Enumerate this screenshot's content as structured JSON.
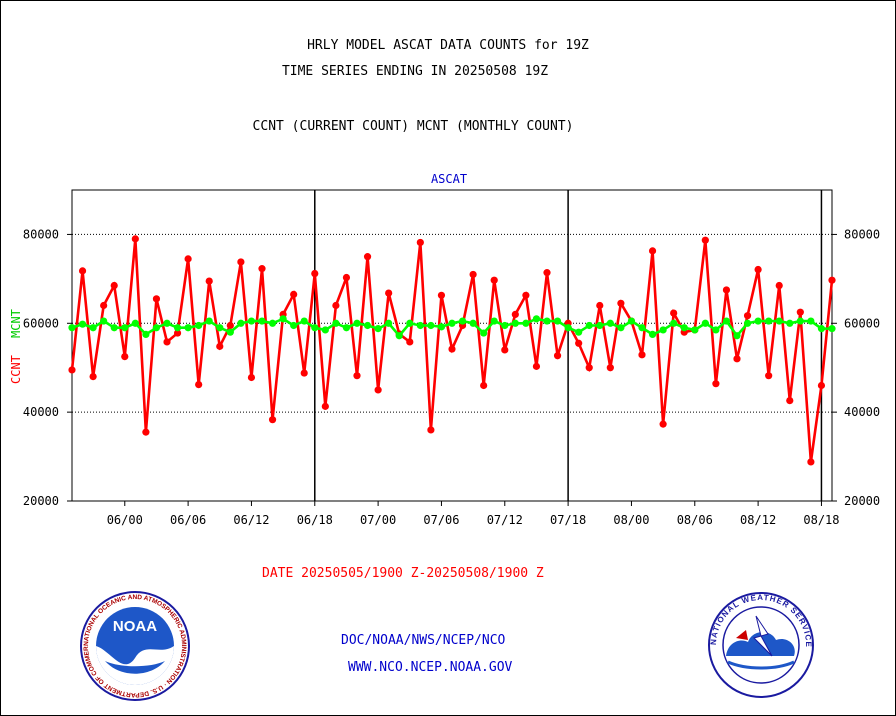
{
  "header": {
    "title_line1": "HRLY MODEL ASCAT DATA COUNTS for 19Z",
    "title_line2": "TIME SERIES ENDING IN 20250508 19Z",
    "subtitle": "CCNT (CURRENT COUNT) MCNT (MONTHLY COUNT)"
  },
  "footer": {
    "date_range": "DATE 20250505/1900 Z-20250508/1900 Z",
    "org_path": "DOC/NOAA/NWS/NCEP/NCO",
    "website": "WWW.NCO.NCEP.NOAA.GOV"
  },
  "logos": {
    "left_text": "NOAA",
    "left_ring": "NATIONAL OCEANIC AND ATMOSPHERIC ADMINISTRATION · U.S. DEPARTMENT OF COMMERCE",
    "right_ring": "NATIONAL WEATHER SERVICE"
  },
  "colors": {
    "ccnt": "#ff0000",
    "mcnt": "#00ff00",
    "panel": "#0000cc"
  },
  "chart_data": {
    "type": "line",
    "title": "ASCAT",
    "ylabel_ccnt": "CCNT",
    "ylabel_mcnt": "MCNT",
    "ylim": [
      20000,
      90000
    ],
    "yticks": [
      20000,
      40000,
      60000,
      80000
    ],
    "ytick_labels": [
      "20000",
      "40000",
      "60000",
      "80000"
    ],
    "x_tick_labels": [
      "06/00",
      "06/06",
      "06/12",
      "06/18",
      "07/00",
      "07/06",
      "07/12",
      "07/18",
      "08/00",
      "08/06",
      "08/12",
      "08/18"
    ],
    "x_tick_hours_from_start": [
      5,
      11,
      17,
      23,
      29,
      35,
      41,
      47,
      53,
      59,
      65,
      71
    ],
    "x_hours_total": 72,
    "day_boundaries_hours": [
      23,
      47,
      71
    ],
    "grid": "horizontal dotted at 40000, 60000, 80000",
    "series": [
      {
        "name": "CCNT",
        "values": [
          49500,
          71800,
          48000,
          64000,
          68500,
          52500,
          79000,
          35500,
          65500,
          55800,
          57800,
          74500,
          46200,
          69500,
          54800,
          59500,
          73800,
          47800,
          72300,
          38300,
          62000,
          66500,
          48800,
          71200,
          41300,
          64000,
          70300,
          48200,
          75000,
          45000,
          66800,
          57600,
          55800,
          78200,
          36000,
          66300,
          54200,
          59500,
          71000,
          46000,
          69700,
          54000,
          62000,
          66300,
          50300,
          71400,
          52700,
          60000,
          55500,
          50000,
          64000,
          50000,
          64500,
          60500,
          52900,
          76300,
          37300,
          62300,
          58000,
          58500,
          78700,
          46400,
          67500,
          52000,
          61700,
          72100,
          48200,
          68500,
          42600,
          62500,
          28800,
          46000,
          69700
        ]
      },
      {
        "name": "MCNT",
        "values": [
          59000,
          59800,
          59000,
          60500,
          59000,
          59000,
          60000,
          57500,
          59000,
          60000,
          59000,
          59000,
          59500,
          60500,
          59000,
          58000,
          60000,
          60500,
          60500,
          60000,
          61000,
          59500,
          60500,
          59000,
          58500,
          60000,
          59000,
          60000,
          59500,
          58800,
          60000,
          57200,
          60000,
          59500,
          59500,
          59200,
          60000,
          60500,
          60000,
          57800,
          60500,
          59500,
          60000,
          60000,
          61000,
          60500,
          60500,
          59000,
          58000,
          59500,
          59500,
          60000,
          59000,
          60500,
          59000,
          57500,
          58500,
          60000,
          59000,
          58500,
          60000,
          58500,
          60500,
          57200,
          60000,
          60500,
          60500,
          60500,
          60000,
          60500,
          60500,
          58800,
          58800
        ]
      }
    ]
  }
}
